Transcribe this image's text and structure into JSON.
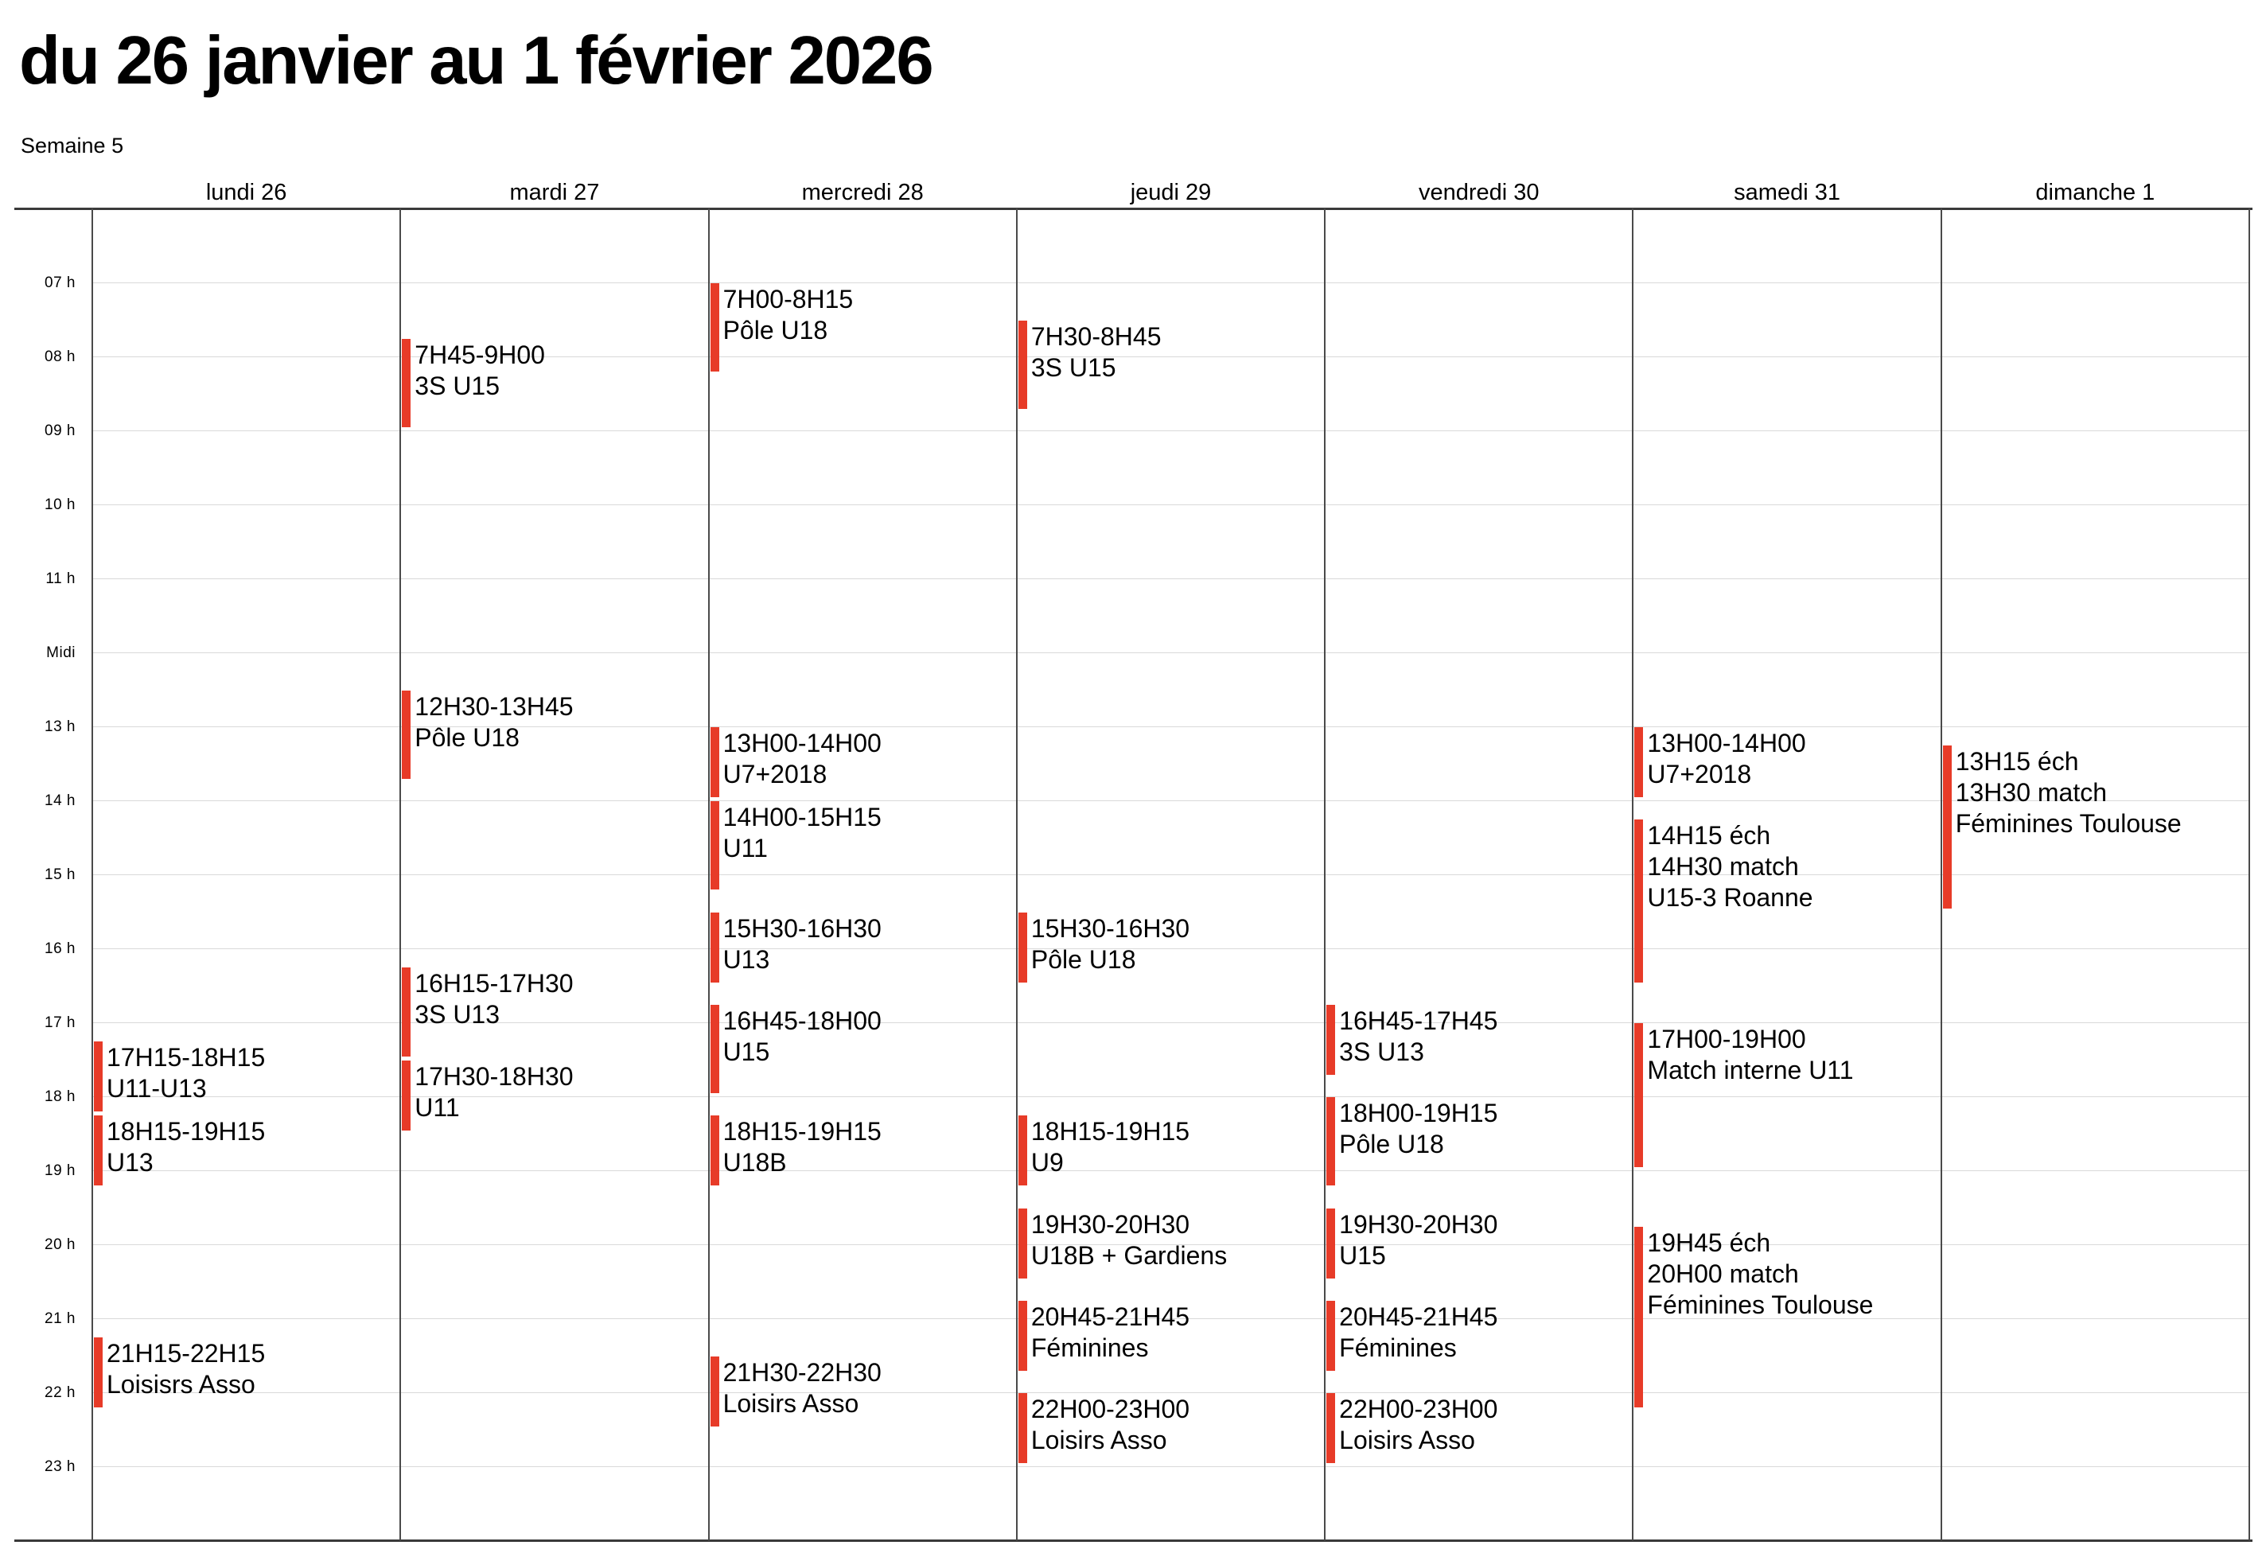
{
  "header": {
    "title": "du 26 janvier au 1 février 2026",
    "subtitle": "Semaine 5"
  },
  "calendar": {
    "event_color": "#e73b28",
    "time_axis": {
      "labels": [
        {
          "label": "07 h",
          "hour": 7
        },
        {
          "label": "08 h",
          "hour": 8
        },
        {
          "label": "09 h",
          "hour": 9
        },
        {
          "label": "10 h",
          "hour": 10
        },
        {
          "label": "11 h",
          "hour": 11
        },
        {
          "label": "Midi",
          "hour": 12
        },
        {
          "label": "13 h",
          "hour": 13
        },
        {
          "label": "14 h",
          "hour": 14
        },
        {
          "label": "15 h",
          "hour": 15
        },
        {
          "label": "16 h",
          "hour": 16
        },
        {
          "label": "17 h",
          "hour": 17
        },
        {
          "label": "18 h",
          "hour": 18
        },
        {
          "label": "19 h",
          "hour": 19
        },
        {
          "label": "20 h",
          "hour": 20
        },
        {
          "label": "21 h",
          "hour": 21
        },
        {
          "label": "22 h",
          "hour": 22
        },
        {
          "label": "23 h",
          "hour": 23
        }
      ]
    },
    "days": [
      {
        "label": "lundi 26",
        "events": [
          {
            "start": 17.25,
            "end": 18.25,
            "lines": [
              "17H15-18H15",
              "U11-U13"
            ]
          },
          {
            "start": 18.25,
            "end": 19.25,
            "lines": [
              "18H15-19H15",
              "U13"
            ]
          },
          {
            "start": 21.25,
            "end": 22.25,
            "lines": [
              "21H15-22H15",
              "Loisisrs Asso"
            ]
          }
        ]
      },
      {
        "label": "mardi 27",
        "events": [
          {
            "start": 7.75,
            "end": 9.0,
            "lines": [
              "7H45-9H00",
              "3S U15"
            ]
          },
          {
            "start": 12.5,
            "end": 13.75,
            "lines": [
              "12H30-13H45",
              "Pôle U18"
            ]
          },
          {
            "start": 16.25,
            "end": 17.5,
            "lines": [
              "16H15-17H30",
              "3S U13"
            ]
          },
          {
            "start": 17.5,
            "end": 18.5,
            "lines": [
              "17H30-18H30",
              "U11"
            ]
          }
        ]
      },
      {
        "label": "mercredi 28",
        "events": [
          {
            "start": 7.0,
            "end": 8.25,
            "lines": [
              "7H00-8H15",
              "Pôle U18"
            ]
          },
          {
            "start": 13.0,
            "end": 14.0,
            "lines": [
              "13H00-14H00",
              "U7+2018"
            ]
          },
          {
            "start": 14.0,
            "end": 15.25,
            "lines": [
              "14H00-15H15",
              "U11"
            ]
          },
          {
            "start": 15.5,
            "end": 16.5,
            "lines": [
              "15H30-16H30",
              "U13"
            ]
          },
          {
            "start": 16.75,
            "end": 18.0,
            "lines": [
              "16H45-18H00",
              "U15"
            ]
          },
          {
            "start": 18.25,
            "end": 19.25,
            "lines": [
              "18H15-19H15",
              "U18B"
            ]
          },
          {
            "start": 21.5,
            "end": 22.5,
            "lines": [
              "21H30-22H30",
              "Loisirs Asso"
            ]
          }
        ]
      },
      {
        "label": "jeudi 29",
        "events": [
          {
            "start": 7.5,
            "end": 8.75,
            "lines": [
              "7H30-8H45",
              "3S U15"
            ]
          },
          {
            "start": 15.5,
            "end": 16.5,
            "lines": [
              "15H30-16H30",
              "Pôle U18"
            ]
          },
          {
            "start": 18.25,
            "end": 19.25,
            "lines": [
              "18H15-19H15",
              "U9"
            ]
          },
          {
            "start": 19.5,
            "end": 20.5,
            "lines": [
              "19H30-20H30",
              "U18B + Gardiens"
            ]
          },
          {
            "start": 20.75,
            "end": 21.75,
            "lines": [
              "20H45-21H45",
              "Féminines"
            ]
          },
          {
            "start": 22.0,
            "end": 23.0,
            "lines": [
              "22H00-23H00",
              "Loisirs Asso"
            ]
          }
        ]
      },
      {
        "label": "vendredi 30",
        "events": [
          {
            "start": 16.75,
            "end": 17.75,
            "lines": [
              "16H45-17H45",
              "3S U13"
            ]
          },
          {
            "start": 18.0,
            "end": 19.25,
            "lines": [
              "18H00-19H15",
              "Pôle U18"
            ]
          },
          {
            "start": 19.5,
            "end": 20.5,
            "lines": [
              "19H30-20H30",
              "U15"
            ]
          },
          {
            "start": 20.75,
            "end": 21.75,
            "lines": [
              "20H45-21H45",
              "Féminines"
            ]
          },
          {
            "start": 22.0,
            "end": 23.0,
            "lines": [
              "22H00-23H00",
              "Loisirs Asso"
            ]
          }
        ]
      },
      {
        "label": "samedi 31",
        "events": [
          {
            "start": 13.0,
            "end": 14.0,
            "lines": [
              "13H00-14H00",
              "U7+2018"
            ]
          },
          {
            "start": 14.25,
            "end": 16.5,
            "lines": [
              "14H15 éch",
              "14H30 match",
              "U15-3 Roanne"
            ]
          },
          {
            "start": 17.0,
            "end": 19.0,
            "lines": [
              "17H00-19H00",
              "Match interne U11"
            ]
          },
          {
            "start": 19.75,
            "end": 22.25,
            "lines": [
              "19H45 éch",
              "20H00 match",
              "Féminines Toulouse"
            ]
          }
        ]
      },
      {
        "label": "dimanche 1",
        "events": [
          {
            "start": 13.25,
            "end": 15.5,
            "lines": [
              "13H15 éch",
              "13H30 match",
              "Féminines Toulouse"
            ]
          }
        ]
      }
    ]
  }
}
